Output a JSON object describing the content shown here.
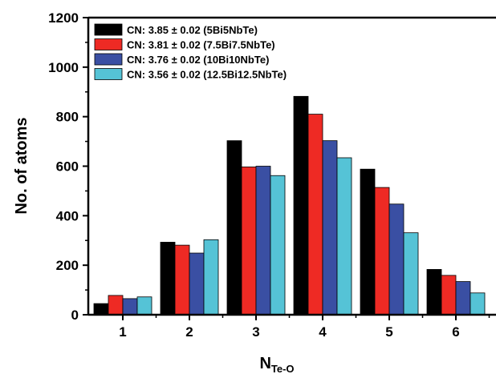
{
  "chart_data": {
    "type": "bar",
    "title": "",
    "xlabel_main": "N",
    "xlabel_sub": "Te-O",
    "ylabel": "No. of atoms",
    "ylim": [
      0,
      1200
    ],
    "yticks": [
      "0",
      "200",
      "400",
      "600",
      "800",
      "1000",
      "1200"
    ],
    "categories": [
      "1",
      "2",
      "3",
      "4",
      "5",
      "6"
    ],
    "grid": false,
    "legend_position": "top-left",
    "series": [
      {
        "name": "CN: 3.85 ± 0.02 (5Bi5NbTe)",
        "color": "#000000",
        "values": [
          45,
          293,
          703,
          882,
          588,
          183
        ]
      },
      {
        "name": "CN: 3.81 ± 0.02 (7.5Bi7.5NbTe)",
        "color": "#ee2a24",
        "values": [
          78,
          281,
          597,
          810,
          514,
          159
        ]
      },
      {
        "name": "CN: 3.76 ± 0.02 (10Bi10NbTe)",
        "color": "#3a4fa3",
        "values": [
          65,
          249,
          600,
          703,
          447,
          134
        ]
      },
      {
        "name": "CN: 3.56 ± 0.02 (12.5Bi12.5NbTe)",
        "color": "#55c3d6",
        "values": [
          72,
          303,
          562,
          634,
          331,
          88
        ]
      }
    ]
  }
}
